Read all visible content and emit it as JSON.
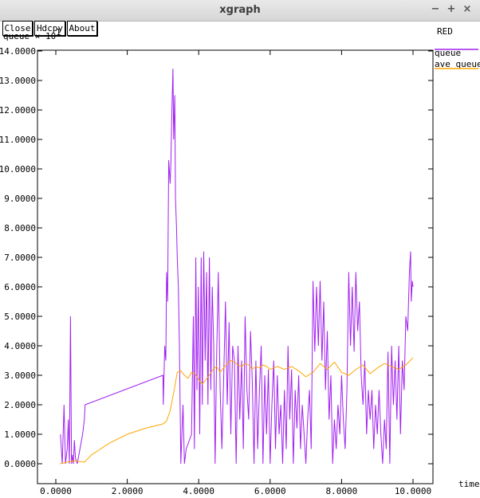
{
  "window": {
    "title": "xgraph"
  },
  "toolbar": {
    "close_label": "Close",
    "hdcpy_label": "Hdcpy",
    "about_label": "About"
  },
  "plot_title": "RED",
  "chart_data": {
    "type": "line",
    "title": "RED",
    "ylabel": "queue × 10¹",
    "xlabel": "time",
    "xlim": [
      0,
      10
    ],
    "ylim": [
      0,
      14
    ],
    "y_ticks": [
      "0.0000",
      "1.0000",
      "2.0000",
      "3.0000",
      "4.0000",
      "5.0000",
      "6.0000",
      "7.0000",
      "8.0000",
      "9.0000",
      "10.0000",
      "11.0000",
      "12.0000",
      "13.0000",
      "14.0000"
    ],
    "x_ticks": [
      "0.0000",
      "2.0000",
      "4.0000",
      "6.0000",
      "8.0000",
      "10.0000"
    ],
    "grid": false,
    "legend": "right",
    "series": [
      {
        "name": "queue",
        "color": "#a020f0",
        "x": [
          0.13,
          0.18,
          0.23,
          0.27,
          0.32,
          0.35,
          0.38,
          0.41,
          0.44,
          0.46,
          0.49,
          0.52,
          0.55,
          0.6,
          0.75,
          0.8,
          0.82,
          3.0,
          3.01,
          3.05,
          3.08,
          3.1,
          3.13,
          3.16,
          3.2,
          3.22,
          3.25,
          3.28,
          3.3,
          3.33,
          3.35,
          3.38,
          3.4,
          3.43,
          3.46,
          3.5,
          3.53,
          3.56,
          3.6,
          3.65,
          3.8,
          3.85,
          3.88,
          3.92,
          3.95,
          3.99,
          4.03,
          4.07,
          4.1,
          4.14,
          4.18,
          4.22,
          4.26,
          4.3,
          4.34,
          4.38,
          4.42,
          4.46,
          4.5,
          4.55,
          4.6,
          4.65,
          4.7,
          4.75,
          4.8,
          4.85,
          4.9,
          4.95,
          5.0,
          5.05,
          5.1,
          5.15,
          5.2,
          5.25,
          5.3,
          5.35,
          5.4,
          5.45,
          5.5,
          5.55,
          5.6,
          5.65,
          5.7,
          5.75,
          5.8,
          5.85,
          5.9,
          5.95,
          6.0,
          6.05,
          6.1,
          6.15,
          6.2,
          6.25,
          6.3,
          6.35,
          6.4,
          6.45,
          6.5,
          6.55,
          6.6,
          6.65,
          6.7,
          6.75,
          6.8,
          6.85,
          6.9,
          6.95,
          7.0,
          7.05,
          7.1,
          7.15,
          7.2,
          7.25,
          7.3,
          7.35,
          7.4,
          7.45,
          7.5,
          7.55,
          7.6,
          7.65,
          7.7,
          7.75,
          7.8,
          7.85,
          7.9,
          7.95,
          8.0,
          8.05,
          8.1,
          8.15,
          8.2,
          8.25,
          8.3,
          8.35,
          8.4,
          8.45,
          8.5,
          8.55,
          8.6,
          8.65,
          8.7,
          8.75,
          8.8,
          8.85,
          8.9,
          8.95,
          9.0,
          9.05,
          9.1,
          9.15,
          9.2,
          9.25,
          9.3,
          9.35,
          9.4,
          9.45,
          9.5,
          9.55,
          9.6,
          9.65,
          9.7,
          9.75,
          9.8,
          9.85,
          9.9,
          9.93,
          9.95,
          9.98,
          10.0
        ],
        "y": [
          1.0,
          0.0,
          2.0,
          0.0,
          0.5,
          1.5,
          0.0,
          5.0,
          0.0,
          0.3,
          0.0,
          0.8,
          0.2,
          0.0,
          1.0,
          1.5,
          2.0,
          3.0,
          2.0,
          4.0,
          3.5,
          6.5,
          5.5,
          10.3,
          9.5,
          10.2,
          12.0,
          13.4,
          11.0,
          12.5,
          9.0,
          8.0,
          7.0,
          6.0,
          4.0,
          0.0,
          1.0,
          2.0,
          0.0,
          0.5,
          1.0,
          5.0,
          0.5,
          7.0,
          2.5,
          6.0,
          1.0,
          7.0,
          2.0,
          7.2,
          3.5,
          6.5,
          2.0,
          7.0,
          2.5,
          6.0,
          4.0,
          0.0,
          3.5,
          6.5,
          2.5,
          0.5,
          3.0,
          5.5,
          2.0,
          4.8,
          1.0,
          4.0,
          3.5,
          0.0,
          4.0,
          1.5,
          3.5,
          0.5,
          5.0,
          2.5,
          1.5,
          4.5,
          2.8,
          0.0,
          3.5,
          0.5,
          2.5,
          4.0,
          0.0,
          3.0,
          1.0,
          3.2,
          0.0,
          2.0,
          3.5,
          0.5,
          3.0,
          1.0,
          2.0,
          0.0,
          2.5,
          0.5,
          4.0,
          1.5,
          3.2,
          0.0,
          2.5,
          1.2,
          3.0,
          0.5,
          2.0,
          1.0,
          0.0,
          1.5,
          2.5,
          0.5,
          6.2,
          3.8,
          6.0,
          4.0,
          6.2,
          3.5,
          5.5,
          2.5,
          4.5,
          1.5,
          3.0,
          0.0,
          1.5,
          0.5,
          2.0,
          1.0,
          3.0,
          1.5,
          0.5,
          2.5,
          6.5,
          4.0,
          6.0,
          3.8,
          6.5,
          4.5,
          5.5,
          3.0,
          2.0,
          3.5,
          1.0,
          2.5,
          1.5,
          2.5,
          0.5,
          2.0,
          1.0,
          2.5,
          1.0,
          0.0,
          1.5,
          0.5,
          3.8,
          0.0,
          4.0,
          2.0,
          3.5,
          1.5,
          4.0,
          1.0,
          3.5,
          2.5,
          5.0,
          4.5,
          6.5,
          7.2,
          5.5,
          6.2,
          6.0
        ]
      },
      {
        "name": "ave_queue",
        "color": "#ffa500",
        "x": [
          0.12,
          0.5,
          0.8,
          1.0,
          1.5,
          2.0,
          2.5,
          3.0,
          3.1,
          3.2,
          3.3,
          3.4,
          3.5,
          3.6,
          3.7,
          3.8,
          3.9,
          4.0,
          4.1,
          4.2,
          4.3,
          4.4,
          4.5,
          4.6,
          4.7,
          4.8,
          4.9,
          5.0,
          5.1,
          5.2,
          5.3,
          5.4,
          5.5,
          5.6,
          5.7,
          5.8,
          5.9,
          6.0,
          6.2,
          6.4,
          6.6,
          6.8,
          7.0,
          7.2,
          7.4,
          7.6,
          7.8,
          8.0,
          8.2,
          8.4,
          8.6,
          8.8,
          9.0,
          9.2,
          9.4,
          9.6,
          9.8,
          10.0
        ],
        "y": [
          0.0,
          0.1,
          0.05,
          0.3,
          0.7,
          1.0,
          1.2,
          1.35,
          1.45,
          1.8,
          2.4,
          3.1,
          3.15,
          3.0,
          2.9,
          3.1,
          3.05,
          2.85,
          2.7,
          2.85,
          3.0,
          3.2,
          3.3,
          3.1,
          3.25,
          3.4,
          3.5,
          3.45,
          3.35,
          3.3,
          3.4,
          3.35,
          3.2,
          3.3,
          3.25,
          3.35,
          3.3,
          3.2,
          3.3,
          3.2,
          3.3,
          3.15,
          2.95,
          3.1,
          3.4,
          3.2,
          3.45,
          3.1,
          3.0,
          3.2,
          3.35,
          3.05,
          3.25,
          3.4,
          3.3,
          3.2,
          3.35,
          3.6
        ]
      }
    ]
  }
}
